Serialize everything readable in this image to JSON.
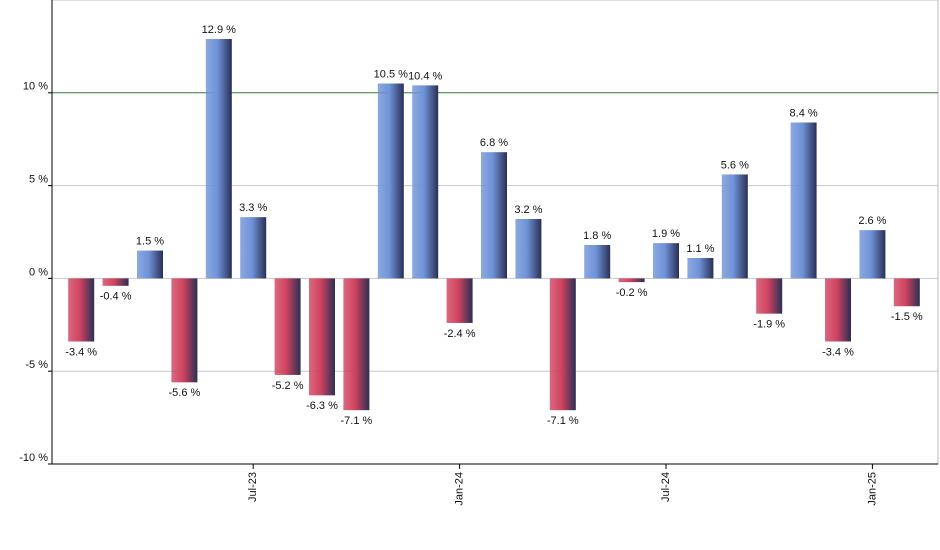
{
  "chart_data": {
    "type": "bar",
    "categories": [
      null,
      null,
      null,
      null,
      null,
      "Jul-23",
      null,
      null,
      null,
      null,
      null,
      "Jan-24",
      null,
      null,
      null,
      null,
      null,
      "Jul-24",
      null,
      null,
      null,
      null,
      null,
      "Jan-25",
      null
    ],
    "values": [
      -3.4,
      -0.4,
      1.5,
      -5.6,
      12.9,
      3.3,
      -5.2,
      -6.3,
      -7.1,
      10.5,
      10.4,
      -2.4,
      6.8,
      3.2,
      -7.1,
      1.8,
      -0.2,
      1.9,
      1.1,
      5.6,
      -1.9,
      8.4,
      -3.4,
      2.6,
      -1.5
    ],
    "value_labels": [
      "-3.4 %",
      "-0.4 %",
      "1.5 %",
      "-5.6 %",
      "12.9 %",
      "3.3 %",
      "-5.2 %",
      "-6.3 %",
      "-7.1 %",
      "10.5 %",
      "10.4 %",
      "-2.4 %",
      "6.8 %",
      "3.2 %",
      "-7.1 %",
      "1.8 %",
      "-0.2 %",
      "1.9 %",
      "1.1 %",
      "5.6 %",
      "-1.9 %",
      "8.4 %",
      "-3.4 %",
      "2.6 %",
      "-1.5 %"
    ],
    "positive_color": "#6f93d8",
    "negative_color": "#d0435f",
    "ylim": [
      -10,
      15
    ],
    "yticks": [
      {
        "value": -10,
        "label": "-10 %"
      },
      {
        "value": -5,
        "label": "-5 %"
      },
      {
        "value": 0,
        "label": "0 %"
      },
      {
        "value": 5,
        "label": "5 %"
      },
      {
        "value": 10,
        "label": "10 %"
      }
    ],
    "grid": true,
    "reference_line": {
      "value": 10,
      "color": "#2e7d32"
    }
  }
}
